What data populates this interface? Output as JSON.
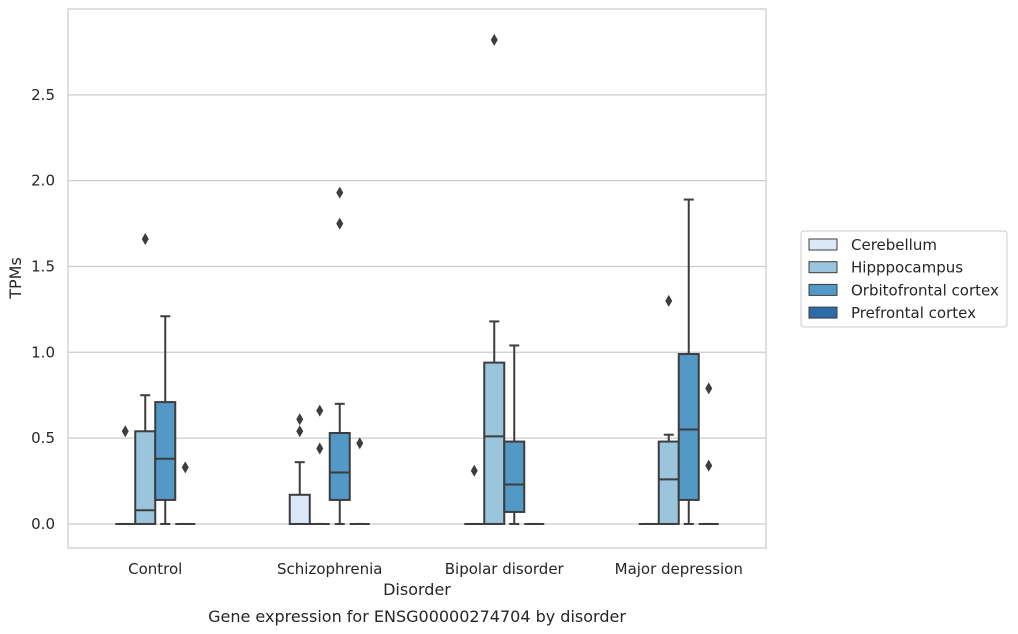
{
  "chart_data": {
    "type": "box",
    "title": "",
    "caption": "Gene expression for ENSG00000274704 by disorder",
    "xlabel": "Disorder",
    "ylabel": "TPMs",
    "ylim": [
      -0.14,
      3.0
    ],
    "yticks": [
      "0.0",
      "0.5",
      "1.0",
      "1.5",
      "2.0",
      "2.5"
    ],
    "grid": "horizontal",
    "legend_position": "right",
    "categories": [
      "Control",
      "Schizophrenia",
      "Bipolar disorder",
      "Major depression"
    ],
    "series": [
      {
        "name": "Cerebellum",
        "color": "#dbe9f6",
        "boxes": [
          {
            "q1": 0,
            "median": 0,
            "q3": 0,
            "whisker_low": 0,
            "whisker_high": 0,
            "outliers": [
              0.54
            ]
          },
          {
            "q1": 0,
            "median": 0,
            "q3": 0.17,
            "whisker_low": 0,
            "whisker_high": 0.36,
            "outliers": [
              0.54,
              0.61
            ]
          },
          {
            "q1": 0,
            "median": 0,
            "q3": 0,
            "whisker_low": 0,
            "whisker_high": 0,
            "outliers": [
              0.31
            ]
          },
          {
            "q1": 0,
            "median": 0,
            "q3": 0,
            "whisker_low": 0,
            "whisker_high": 0,
            "outliers": []
          }
        ]
      },
      {
        "name": "Hipppocampus",
        "color": "#9ac5dd",
        "boxes": [
          {
            "q1": 0,
            "median": 0.08,
            "q3": 0.54,
            "whisker_low": 0,
            "whisker_high": 0.75,
            "outliers": [
              1.66
            ]
          },
          {
            "q1": 0,
            "median": 0,
            "q3": 0,
            "whisker_low": 0,
            "whisker_high": 0,
            "outliers": [
              0.44,
              0.66
            ]
          },
          {
            "q1": 0,
            "median": 0.51,
            "q3": 0.94,
            "whisker_low": 0,
            "whisker_high": 1.18,
            "outliers": [
              2.82
            ]
          },
          {
            "q1": 0,
            "median": 0.26,
            "q3": 0.48,
            "whisker_low": 0,
            "whisker_high": 0.52,
            "outliers": [
              1.3
            ]
          }
        ]
      },
      {
        "name": "Orbitofrontal cortex",
        "color": "#5299c8",
        "boxes": [
          {
            "q1": 0.14,
            "median": 0.38,
            "q3": 0.71,
            "whisker_low": 0,
            "whisker_high": 1.21,
            "outliers": []
          },
          {
            "q1": 0.14,
            "median": 0.3,
            "q3": 0.53,
            "whisker_low": 0,
            "whisker_high": 0.7,
            "outliers": [
              1.75,
              1.93
            ]
          },
          {
            "q1": 0.07,
            "median": 0.23,
            "q3": 0.48,
            "whisker_low": 0,
            "whisker_high": 1.04,
            "outliers": []
          },
          {
            "q1": 0.14,
            "median": 0.55,
            "q3": 0.99,
            "whisker_low": 0,
            "whisker_high": 1.89,
            "outliers": []
          }
        ]
      },
      {
        "name": "Prefrontal cortex",
        "color": "#2b6ca8",
        "boxes": [
          {
            "q1": 0,
            "median": 0,
            "q3": 0,
            "whisker_low": 0,
            "whisker_high": 0,
            "outliers": [
              0.33
            ]
          },
          {
            "q1": 0,
            "median": 0,
            "q3": 0,
            "whisker_low": 0,
            "whisker_high": 0,
            "outliers": [
              0.47
            ]
          },
          {
            "q1": 0,
            "median": 0,
            "q3": 0,
            "whisker_low": 0,
            "whisker_high": 0,
            "outliers": []
          },
          {
            "q1": 0,
            "median": 0,
            "q3": 0,
            "whisker_low": 0,
            "whisker_high": 0,
            "outliers": [
              0.34,
              0.79
            ]
          }
        ]
      }
    ]
  }
}
